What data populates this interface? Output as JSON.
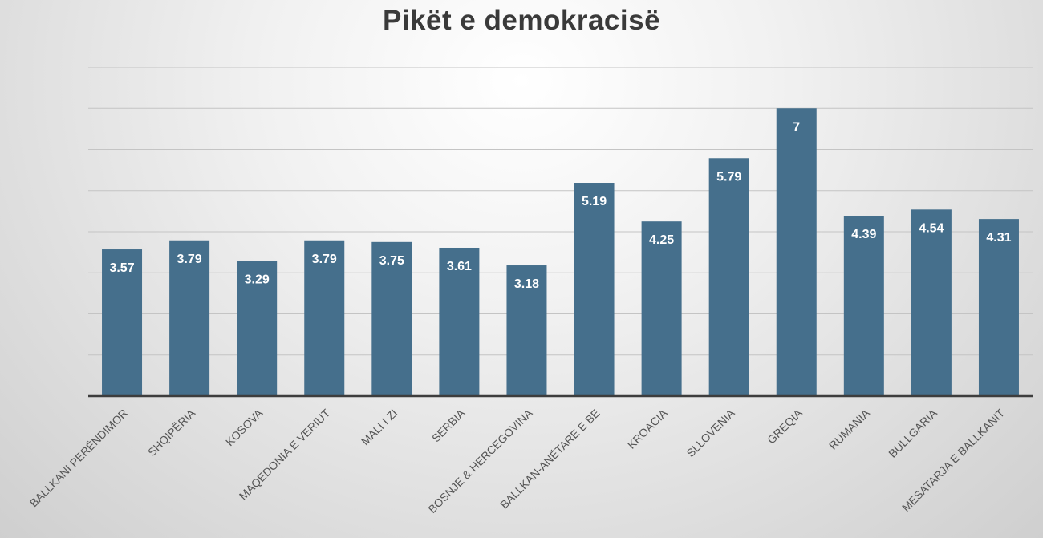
{
  "chart_data": {
    "type": "bar",
    "title": "Pikët e demokracisë",
    "categories": [
      "BALLKANI PERËNDIMOR",
      "SHQIPËRIA",
      "KOSOVA",
      "MAQEDONIA E VERIUT",
      "MALI I ZI",
      "SERBIA",
      "BOSNJE & HERCEGOVINA",
      "BALLKAN-ANËTARE E BE",
      "KROACIA",
      "SLLOVENIA",
      "GREQIA",
      "RUMANIA",
      "BULLGARIA",
      "MESATARJA E BALLKANIT"
    ],
    "values": [
      3.57,
      3.79,
      3.29,
      3.79,
      3.75,
      3.61,
      3.18,
      5.19,
      4.25,
      5.79,
      7,
      4.39,
      4.54,
      4.31
    ],
    "value_labels": [
      "3.57",
      "3.79",
      "3.29",
      "3.79",
      "3.75",
      "3.61",
      "3.18",
      "5.19",
      "4.25",
      "5.79",
      "7",
      "4.39",
      "4.54",
      "4.31"
    ],
    "ylim": [
      0,
      8
    ],
    "grid": true,
    "legend": "none",
    "bar_color": "#456f8c",
    "label_color": "#ffffff"
  }
}
